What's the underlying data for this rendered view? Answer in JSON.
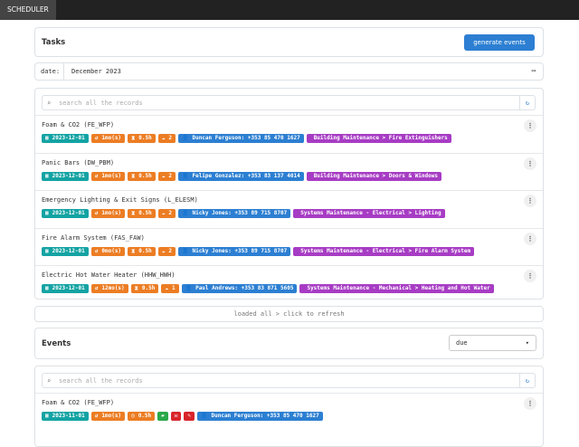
{
  "navbar": {
    "brand": "SCHEDULER"
  },
  "tasks": {
    "title": "Tasks",
    "button": "generate events",
    "date_label": "date:",
    "date_value": "December 2023",
    "search_placeholder": "search all the records",
    "rows": [
      {
        "title": "Foam & CO2 (FE_WFP)",
        "date": "2023-12-01",
        "interval": "1mo(s)",
        "duration": "0.5h",
        "staff": "2",
        "contact": "Duncan Ferguson: +353 85 470 1627",
        "category": "Building Maintenance > Fire Extinguishers"
      },
      {
        "title": "Panic Bars (DW_PBM)",
        "date": "2023-12-01",
        "interval": "1mo(s)",
        "duration": "0.5h",
        "staff": "2",
        "contact": "Felipe Gonzalez: +353 83 137 4014",
        "category": "Building Maintenance > Doors & Windows"
      },
      {
        "title": "Emergency Lighting & Exit Signs (L_ELESM)",
        "date": "2023-12-01",
        "interval": "1mo(s)",
        "duration": "0.5h",
        "staff": "2",
        "contact": "Nicky Jones: +353 89 715 8707",
        "category": "Systems Maintenance - Electrical > Lighting"
      },
      {
        "title": "Fire Alarm System (FAS_FAW)",
        "date": "2023-12-01",
        "interval": "0mo(s)",
        "duration": "0.5h",
        "staff": "2",
        "contact": "Nicky Jones: +353 89 715 8707",
        "category": "Systems Maintenance - Electrical > Fire Alarm System"
      },
      {
        "title": "Electric Hot Water Heater (HHW_HWH)",
        "date": "2023-12-01",
        "interval": "12mo(s)",
        "duration": "0.5h",
        "staff": "1",
        "contact": "Paul Andrews: +353 83 871 5605",
        "category": "Systems Maintenance - Mechanical > Heating and Hot Water"
      }
    ],
    "footer": "loaded all > click to refresh"
  },
  "events": {
    "title": "Events",
    "filter": "due",
    "search_placeholder": "search all the records",
    "rows": [
      {
        "title": "Foam & CO2 (FE_WFP)",
        "date": "2023-11-01",
        "interval": "1mo(s)",
        "duration": "0.5h",
        "contact": "Duncan Ferguson: +353 85 470 1627"
      }
    ]
  }
}
